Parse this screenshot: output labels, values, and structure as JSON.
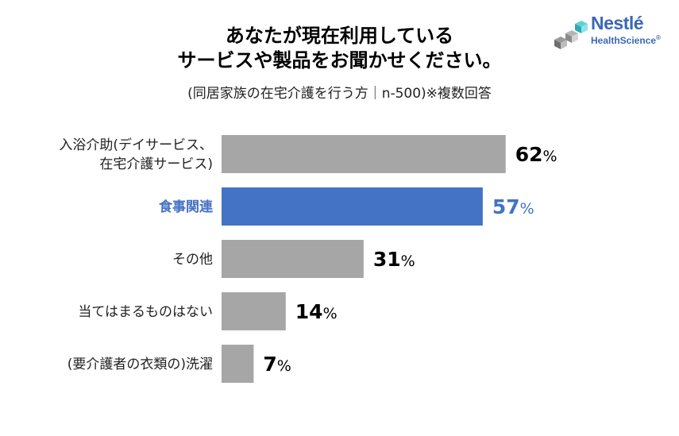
{
  "title_lines": [
    "あなたが現在利用している",
    "サービスや製品をお聞かせください。"
  ],
  "subtitle": "(同居家族の在宅介護を行う方｜n-500)※複数回答",
  "logo": {
    "word1": "Nestlé",
    "word2": "HealthScience",
    "mark": "®"
  },
  "colors": {
    "bar": "#a6a6a6",
    "highlight": "#4472c4",
    "text": "#000000"
  },
  "chart_data": {
    "type": "bar",
    "orientation": "horizontal",
    "title": "あなたが現在利用しているサービスや製品をお聞かせください。",
    "subtitle": "(同居家族の在宅介護を行う方｜n-500)※複数回答",
    "categories": [
      [
        "入浴介助(デイサービス、",
        "在宅介護サービス)"
      ],
      [
        "食事関連"
      ],
      [
        "その他"
      ],
      [
        "当てはまるものはない"
      ],
      [
        "(要介護者の衣類の)洗濯"
      ]
    ],
    "values": [
      62,
      57,
      31,
      14,
      7
    ],
    "unit": "%",
    "highlight_index": 1,
    "xlim": [
      0,
      100
    ]
  }
}
